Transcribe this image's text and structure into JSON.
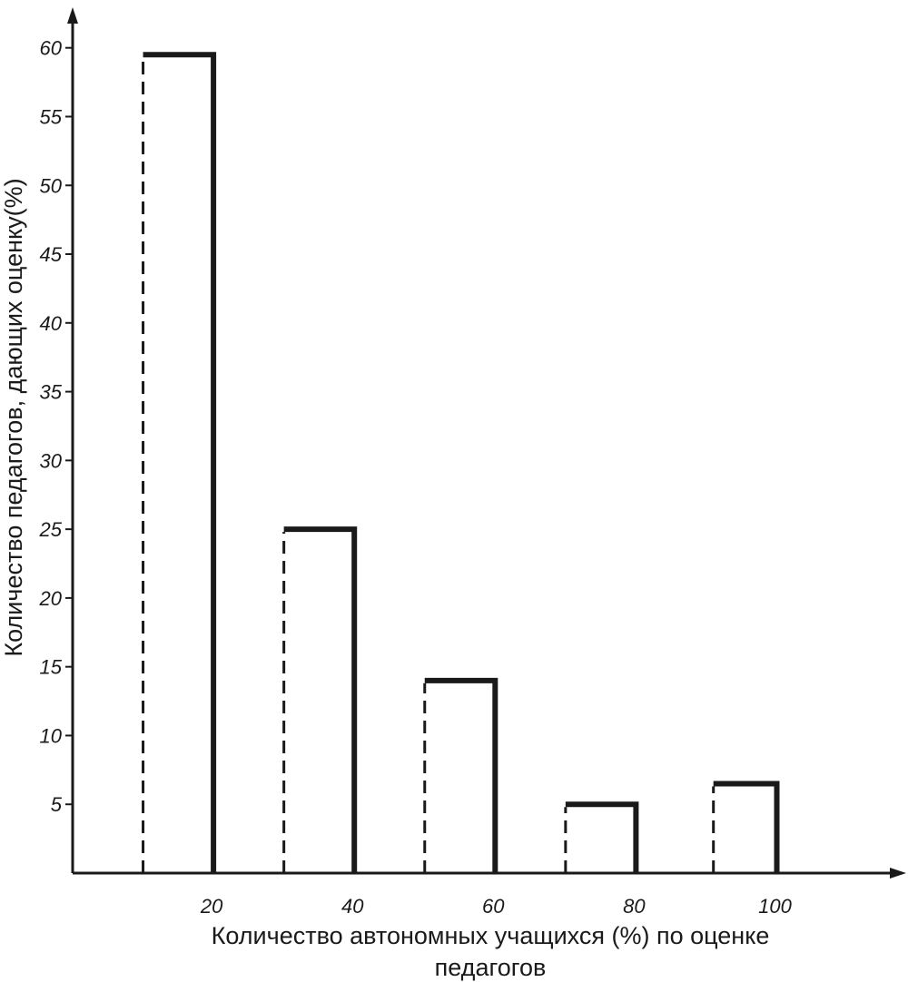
{
  "chart_data": {
    "type": "bar",
    "categories": [
      "20",
      "40",
      "60",
      "80",
      "100"
    ],
    "values": [
      59.5,
      25,
      14,
      5,
      6.5
    ],
    "xlabel_lines": [
      "Количество автономных учащихся (%) по оценке",
      "педагогов"
    ],
    "ylabel": "Количество педагогов, дающих оценку(%)",
    "xlim": [
      0,
      102
    ],
    "ylim": [
      0,
      62
    ],
    "yticks": [
      5,
      10,
      15,
      20,
      25,
      30,
      35,
      40,
      45,
      50,
      55,
      60
    ],
    "bars": [
      {
        "x_start": 10,
        "x_end": 20,
        "value": 59.5
      },
      {
        "x_start": 30,
        "x_end": 40,
        "value": 25
      },
      {
        "x_start": 50,
        "x_end": 60,
        "value": 14
      },
      {
        "x_start": 70,
        "x_end": 80,
        "value": 5
      },
      {
        "x_start": 91,
        "x_end": 100,
        "value": 6.5
      }
    ],
    "grid": false,
    "legend": "none"
  }
}
